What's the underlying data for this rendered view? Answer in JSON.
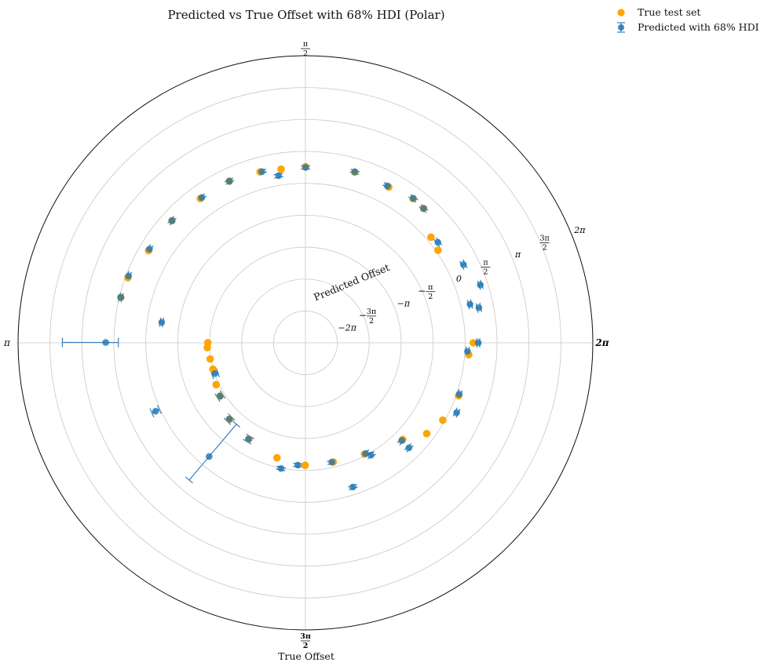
{
  "chart_data": {
    "type": "scatter",
    "projection": "polar",
    "title": "Predicted vs True Offset with 68% HDI (Polar)",
    "xlabel": "True Offset",
    "ylabel": "Predicted Offset",
    "theta_ticks": [
      {
        "value": 0,
        "label": "2π",
        "math": "2\\pi",
        "bold": true
      },
      {
        "value": 1.5708,
        "label": "π/2",
        "math": "\\frac{\\pi}{2}"
      },
      {
        "value": 3.1416,
        "label": "π",
        "math": "\\pi"
      },
      {
        "value": 4.7124,
        "label": "3π/2",
        "math": "\\frac{3\\pi}{2}",
        "bold": true
      }
    ],
    "r_ticks": [
      {
        "value": -6.2832,
        "label": "−2π",
        "math": "-2\\pi"
      },
      {
        "value": -4.7124,
        "label": "−3π/2",
        "math": "-\\frac{3\\pi}{2}"
      },
      {
        "value": -3.1416,
        "label": "−π",
        "math": "-\\pi"
      },
      {
        "value": -1.5708,
        "label": "−π/2",
        "math": "-\\frac{\\pi}{2}"
      },
      {
        "value": 0,
        "label": "0",
        "math": "0"
      },
      {
        "value": 1.5708,
        "label": "π/2",
        "math": "\\frac{\\pi}{2}"
      },
      {
        "value": 3.1416,
        "label": "π",
        "math": "\\pi"
      },
      {
        "value": 4.7124,
        "label": "3π/2",
        "math": "\\frac{3\\pi}{2}"
      },
      {
        "value": 6.2832,
        "label": "2π",
        "math": "2\\pi"
      }
    ],
    "rlim": [
      -7.85,
      6.28
    ],
    "r_label_angle_deg": 22.5,
    "grid": true,
    "legend_position": "upper-right-outside",
    "colors": {
      "true": "#ffa500",
      "pred": "#1f77b4"
    },
    "series": [
      {
        "name": "True test set",
        "points": [
          [
            0.0,
            0.4
          ],
          [
            0.61,
            0.1
          ],
          [
            0.7,
            0.22
          ],
          [
            0.85,
            0.95
          ],
          [
            0.93,
            1.0
          ],
          [
            1.08,
            0.84
          ],
          [
            1.29,
            0.89
          ],
          [
            1.57,
            0.82
          ],
          [
            1.71,
            0.78
          ],
          [
            1.83,
            0.85
          ],
          [
            2.01,
            0.94
          ],
          [
            2.2,
            0.93
          ],
          [
            2.4,
            1.05
          ],
          [
            2.61,
            1.1
          ],
          [
            2.79,
            1.45
          ],
          [
            2.9,
            1.5
          ],
          [
            3.14,
            -3.05
          ],
          [
            3.19,
            -3.02
          ],
          [
            3.31,
            -3.1
          ],
          [
            3.42,
            -3.12
          ],
          [
            3.58,
            -3.0
          ],
          [
            3.7,
            -2.9
          ],
          [
            3.93,
            -2.55
          ],
          [
            4.18,
            -2.35
          ],
          [
            4.47,
            -2.02
          ],
          [
            4.71,
            -1.82
          ],
          [
            4.94,
            -1.82
          ],
          [
            5.2,
            -1.65
          ],
          [
            5.5,
            -1.1
          ],
          [
            5.64,
            -0.4
          ],
          [
            5.77,
            -0.1
          ],
          [
            5.95,
            0.12
          ],
          [
            6.21,
            0.2
          ]
        ]
      },
      {
        "name": "Predicted with 68% HDI",
        "points": [
          [
            0.0,
            0.65,
            0.58,
            0.72
          ],
          [
            0.32,
            1.21,
            1.14,
            1.28
          ],
          [
            0.46,
            0.82,
            0.73,
            0.91
          ],
          [
            0.65,
            0.33,
            0.26,
            0.4
          ],
          [
            0.85,
            0.95,
            0.88,
            1.02
          ],
          [
            0.93,
            1.02,
            0.94,
            1.1
          ],
          [
            1.09,
            0.86,
            0.79,
            0.93
          ],
          [
            1.29,
            0.91,
            0.84,
            0.98
          ],
          [
            1.57,
            0.78,
            0.7,
            0.86
          ],
          [
            1.73,
            0.48,
            0.4,
            0.56
          ],
          [
            1.82,
            0.84,
            0.77,
            0.91
          ],
          [
            2.01,
            0.94,
            0.87,
            1.01
          ],
          [
            2.19,
            0.93,
            0.86,
            1.0
          ],
          [
            2.4,
            1.05,
            0.98,
            1.12
          ],
          [
            2.6,
            1.1,
            1.03,
            1.17
          ],
          [
            2.78,
            1.45,
            1.38,
            1.52
          ],
          [
            2.9,
            1.5,
            1.43,
            1.57
          ],
          [
            3.14,
            1.97,
            1.35,
            4.1
          ],
          [
            3.0,
            -0.71,
            -0.78,
            -0.64
          ],
          [
            3.47,
            -3.15,
            -3.3,
            -3.0
          ],
          [
            3.57,
            0.25,
            0.05,
            0.45
          ],
          [
            4.01,
            -0.52,
            -2.6,
            1.0
          ],
          [
            3.7,
            -2.9,
            -3.05,
            -2.75
          ],
          [
            3.93,
            -2.55,
            -2.7,
            -2.4
          ],
          [
            4.18,
            -2.35,
            -2.5,
            -2.2
          ],
          [
            4.52,
            -1.55,
            -1.62,
            -1.48
          ],
          [
            4.65,
            -1.82,
            -1.9,
            -1.74
          ],
          [
            4.93,
            -1.84,
            -1.92,
            -1.76
          ],
          [
            5.03,
            -0.38,
            -0.45,
            -0.31
          ],
          [
            5.21,
            -1.65,
            -1.73,
            -1.57
          ],
          [
            5.24,
            -1.45,
            -1.53,
            -1.37
          ],
          [
            5.49,
            -0.6,
            -0.67,
            -0.53
          ],
          [
            5.49,
            -1.1,
            -1.18,
            -1.02
          ],
          [
            5.85,
            0.34,
            0.26,
            0.42
          ],
          [
            5.96,
            0.12,
            0.04,
            0.2
          ],
          [
            6.23,
            0.13,
            0.05,
            0.21
          ],
          [
            0.23,
            0.46,
            0.38,
            0.54
          ],
          [
            0.2,
            0.85,
            0.76,
            0.94
          ]
        ]
      }
    ]
  }
}
